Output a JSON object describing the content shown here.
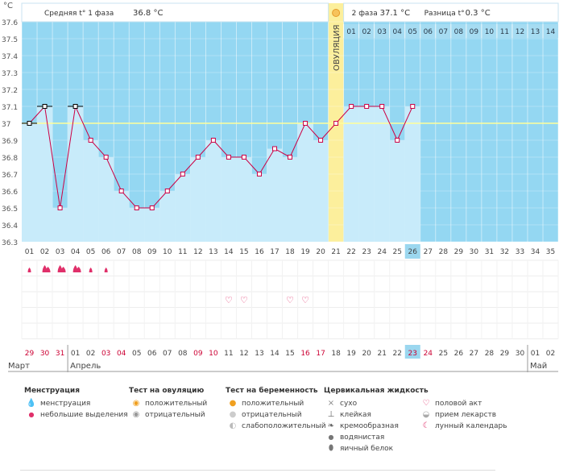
{
  "y_unit": "°C",
  "header": {
    "phase1_label": "Средняя t° 1 фаза",
    "phase1_value": "36.8 °C",
    "phase2_label": "2 фаза",
    "phase2_value": "37.1 °C",
    "diff_label": "Разница t°",
    "diff_value": "0.3 °C"
  },
  "ovulation_label": "ОВУЛЯЦИЯ",
  "colors": {
    "sky": "#94d7f2",
    "fill": "#c8ebfa",
    "line": "#cc0044",
    "marker_border": "#cc0044",
    "ovulation": "#fcef9c",
    "coverline": "#ffff99",
    "highlight": "#9bd7ef",
    "red_day": "#cc0033"
  },
  "chart_data": {
    "type": "line",
    "ylim": [
      36.3,
      37.6
    ],
    "y_ticks": [
      "36.3",
      "36.4",
      "36.5",
      "36.6",
      "36.7",
      "36.8",
      "36.9",
      "37",
      "37.1",
      "37.2",
      "37.3",
      "37.4",
      "37.5",
      "37.6"
    ],
    "cycle_days": [
      "01",
      "02",
      "03",
      "04",
      "05",
      "06",
      "07",
      "08",
      "09",
      "10",
      "11",
      "12",
      "13",
      "14",
      "15",
      "16",
      "17",
      "18",
      "19",
      "20",
      "21",
      "22",
      "23",
      "24",
      "25",
      "26",
      "27",
      "28",
      "29",
      "30",
      "31",
      "32",
      "33",
      "34",
      "35"
    ],
    "values": [
      37.0,
      37.1,
      36.5,
      37.1,
      36.9,
      36.8,
      36.6,
      36.5,
      36.5,
      36.6,
      36.7,
      36.8,
      36.9,
      36.8,
      36.8,
      36.7,
      36.85,
      36.8,
      37.0,
      36.9,
      37.0,
      37.1,
      37.1,
      37.1,
      36.9,
      37.1
    ],
    "cover_line": 37.0,
    "ovulation_day": "21",
    "today_day": "26",
    "post_ovulation_days": [
      "01",
      "02",
      "03",
      "04",
      "05",
      "06",
      "07",
      "08",
      "09",
      "10",
      "11",
      "12",
      "13",
      "14"
    ],
    "calendar_dates": [
      "29",
      "30",
      "31",
      "01",
      "02",
      "03",
      "04",
      "05",
      "06",
      "07",
      "08",
      "09",
      "10",
      "11",
      "12",
      "13",
      "14",
      "15",
      "16",
      "17",
      "18",
      "19",
      "20",
      "21",
      "22",
      "23",
      "24",
      "25",
      "26",
      "27",
      "28",
      "29",
      "30",
      "01",
      "02"
    ],
    "red_dates_idx": [
      0,
      1,
      2,
      5,
      6,
      11,
      12,
      18,
      19,
      25,
      26
    ],
    "today_date": "23",
    "months": [
      {
        "name": "Март",
        "start_idx": 0
      },
      {
        "name": "Апрель",
        "start_idx": 3
      },
      {
        "name": "Май",
        "start_idx": 33
      }
    ],
    "menstruation": [
      {
        "day_idx": 0,
        "level": "small"
      },
      {
        "day_idx": 1,
        "level": "heavy"
      },
      {
        "day_idx": 2,
        "level": "heavy"
      },
      {
        "day_idx": 3,
        "level": "heavy"
      },
      {
        "day_idx": 4,
        "level": "small"
      },
      {
        "day_idx": 5,
        "level": "small"
      }
    ],
    "intercourse_days_idx": [
      13,
      14,
      17,
      18
    ]
  },
  "legend": {
    "menstruation": {
      "title": "Менструация",
      "items": [
        "менструация",
        "небольшие выделения"
      ]
    },
    "ovulation_test": {
      "title": "Тест на овуляцию",
      "items": [
        "положительный",
        "отрицательный"
      ]
    },
    "pregnancy_test": {
      "title": "Тест на беременность",
      "items": [
        "положительный",
        "отрицательный",
        "слабоположительный"
      ]
    },
    "cervical": {
      "title": "Цервикальная жидкость",
      "items": [
        "сухо",
        "клейкая",
        "кремообразная",
        "водянистая",
        "яичный белок"
      ]
    },
    "other": {
      "items": [
        "половой акт",
        "прием лекарств",
        "лунный календарь"
      ]
    }
  }
}
